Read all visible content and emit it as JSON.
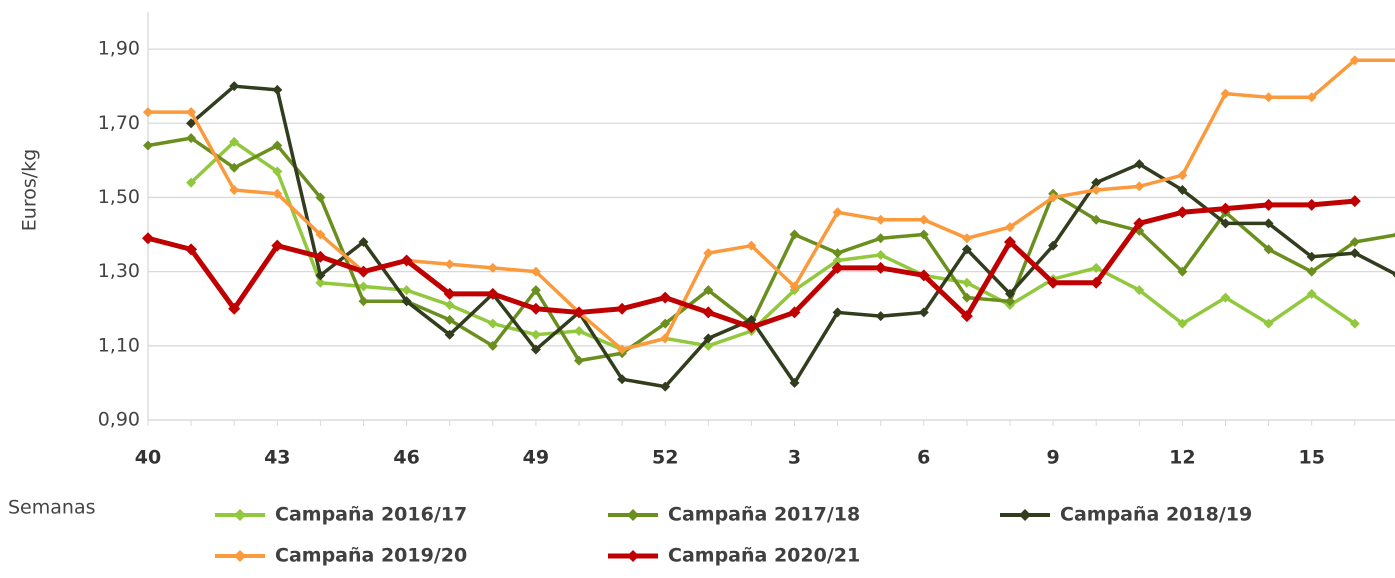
{
  "chart_data": {
    "type": "line",
    "ylabel": "Euros/kg",
    "xlabel": "Semanas",
    "categories": [
      "40",
      null,
      null,
      "43",
      null,
      null,
      "46",
      null,
      null,
      "49",
      null,
      null,
      "52",
      null,
      null,
      "3",
      null,
      null,
      "6",
      null,
      null,
      "9",
      null,
      null,
      "12",
      null,
      null,
      "15",
      null,
      null
    ],
    "ylim": [
      0.9,
      2.0
    ],
    "yticks": [
      {
        "value": 0.9,
        "label": "0,90"
      },
      {
        "value": 1.1,
        "label": "1,10"
      },
      {
        "value": 1.3,
        "label": "1,30"
      },
      {
        "value": 1.5,
        "label": "1,50"
      },
      {
        "value": 1.7,
        "label": "1,70"
      },
      {
        "value": 1.9,
        "label": "1,90"
      }
    ],
    "grid": true,
    "legend": "bottom",
    "series": [
      {
        "name": "Campaña 2016/17",
        "color": "#92c83e",
        "values": [
          null,
          1.54,
          1.65,
          1.57,
          1.27,
          1.26,
          1.25,
          1.21,
          1.16,
          1.13,
          1.14,
          1.09,
          1.12,
          1.1,
          1.14,
          1.25,
          1.33,
          1.345,
          1.29,
          1.27,
          1.21,
          1.28,
          1.31,
          1.25,
          1.16,
          1.23,
          1.16,
          1.24,
          1.16,
          null
        ]
      },
      {
        "name": "Campaña 2017/18",
        "color": "#6a8f1f",
        "values": [
          1.64,
          1.66,
          1.58,
          1.64,
          1.5,
          1.22,
          1.22,
          1.17,
          1.1,
          1.25,
          1.06,
          1.08,
          1.16,
          1.25,
          1.16,
          1.4,
          1.35,
          1.39,
          1.4,
          1.23,
          1.22,
          1.51,
          1.44,
          1.41,
          1.3,
          1.46,
          1.36,
          1.3,
          1.38,
          1.4
        ]
      },
      {
        "name": "Campaña 2018/19",
        "color": "#323d1e",
        "values": [
          null,
          1.7,
          1.8,
          1.79,
          1.29,
          1.38,
          1.22,
          1.13,
          1.24,
          1.09,
          1.19,
          1.01,
          0.99,
          1.12,
          1.17,
          1.0,
          1.19,
          1.18,
          1.19,
          1.36,
          1.24,
          1.37,
          1.54,
          1.59,
          1.52,
          1.43,
          1.43,
          1.34,
          1.35,
          1.29
        ]
      },
      {
        "name": "Campaña 2019/20",
        "color": "#fb9a3c",
        "values": [
          1.73,
          1.73,
          1.52,
          1.51,
          1.4,
          1.3,
          1.33,
          1.32,
          1.31,
          1.3,
          1.19,
          1.09,
          1.12,
          1.35,
          1.37,
          1.26,
          1.46,
          1.44,
          1.44,
          1.39,
          1.42,
          1.5,
          1.52,
          1.53,
          1.56,
          1.78,
          1.77,
          1.77,
          1.87,
          1.87
        ]
      },
      {
        "name": "Campaña 2020/21",
        "color": "#c00000",
        "values": [
          1.39,
          1.36,
          1.2,
          1.37,
          1.34,
          1.3,
          1.33,
          1.24,
          1.24,
          1.2,
          1.19,
          1.2,
          1.23,
          1.19,
          1.15,
          1.19,
          1.31,
          1.31,
          1.29,
          1.18,
          1.38,
          1.27,
          1.27,
          1.43,
          1.46,
          1.47,
          1.48,
          1.48,
          1.49,
          null
        ]
      }
    ]
  }
}
